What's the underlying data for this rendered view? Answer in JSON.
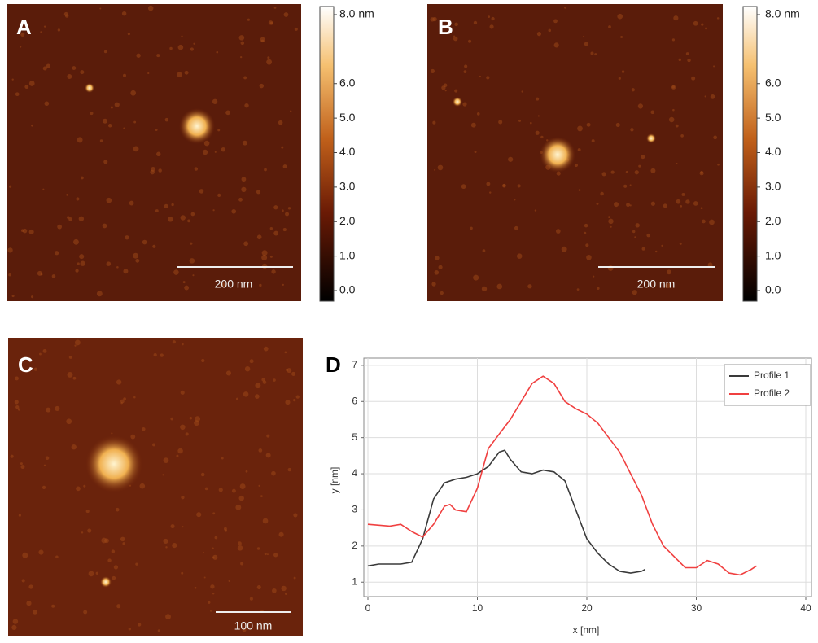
{
  "panels": {
    "labels": [
      "A",
      "B",
      "C",
      "D"
    ]
  },
  "scale_bars": [
    "200 nm",
    "200 nm",
    "100 nm"
  ],
  "colorbars": [
    {
      "lim": [
        0,
        8
      ],
      "ticks": [
        {
          "value": 8,
          "label": "8.0 nm"
        },
        {
          "value": 6,
          "label": "6.0"
        },
        {
          "value": 5,
          "label": "5.0"
        },
        {
          "value": 4,
          "label": "4.0"
        },
        {
          "value": 3,
          "label": "3.0"
        },
        {
          "value": 2,
          "label": "2.0"
        },
        {
          "value": 1,
          "label": "1.0"
        },
        {
          "value": 0,
          "label": "0.0"
        }
      ]
    },
    {
      "lim": [
        0,
        8
      ],
      "ticks": [
        {
          "value": 8,
          "label": "8.0 nm"
        },
        {
          "value": 6,
          "label": "6.0"
        },
        {
          "value": 5,
          "label": "5.0"
        },
        {
          "value": 4,
          "label": "4.0"
        },
        {
          "value": 3,
          "label": "3.0"
        },
        {
          "value": 2,
          "label": "2.0"
        },
        {
          "value": 1,
          "label": "1.0"
        },
        {
          "value": 0,
          "label": "0.0"
        }
      ]
    }
  ],
  "chart_data": {
    "type": "line",
    "x_label": "x [nm]",
    "y_label": "y [nm]",
    "xlim": [
      0,
      40
    ],
    "ylim": [
      0.6,
      7.2
    ],
    "xticks": [
      0,
      10,
      20,
      30,
      40
    ],
    "yticks": [
      1,
      2,
      3,
      4,
      5,
      6,
      7
    ],
    "grid": true,
    "legend": "top-right",
    "series": [
      {
        "name": "Profile 1",
        "color": "#3a3a3a",
        "x": [
          0,
          1,
          3,
          4,
          5,
          6,
          7,
          8,
          9,
          10,
          11,
          12,
          12.5,
          13,
          14,
          15,
          16,
          17,
          18,
          19,
          20,
          21,
          22,
          23,
          24,
          25,
          25.3
        ],
        "values": [
          1.45,
          1.5,
          1.5,
          1.55,
          2.2,
          3.3,
          3.75,
          3.85,
          3.9,
          4.0,
          4.2,
          4.6,
          4.65,
          4.4,
          4.05,
          4.0,
          4.1,
          4.05,
          3.8,
          3.0,
          2.2,
          1.8,
          1.5,
          1.3,
          1.25,
          1.3,
          1.35
        ]
      },
      {
        "name": "Profile 2",
        "color": "#f04040",
        "x": [
          0,
          2,
          3,
          4,
          5,
          6,
          7,
          7.5,
          8,
          9,
          10,
          11,
          12,
          13,
          14,
          15,
          16,
          17,
          18,
          19,
          20,
          21,
          22,
          23,
          24,
          25,
          26,
          27,
          28,
          29,
          30,
          31,
          32,
          33,
          34,
          35,
          35.5
        ],
        "values": [
          2.6,
          2.55,
          2.6,
          2.4,
          2.25,
          2.6,
          3.1,
          3.15,
          3.0,
          2.95,
          3.6,
          4.7,
          5.1,
          5.5,
          6.0,
          6.5,
          6.7,
          6.5,
          6.0,
          5.8,
          5.65,
          5.4,
          5.0,
          4.6,
          4.0,
          3.4,
          2.6,
          2.0,
          1.7,
          1.4,
          1.4,
          1.6,
          1.5,
          1.25,
          1.2,
          1.35,
          1.45
        ]
      }
    ]
  }
}
